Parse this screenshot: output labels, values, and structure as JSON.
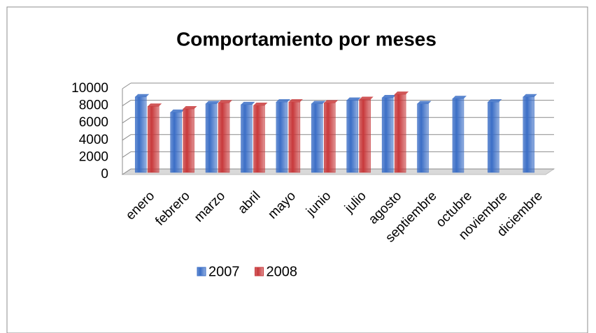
{
  "chart_data": {
    "type": "bar",
    "title": "Comportamiento por meses",
    "categories": [
      "enero",
      "febrero",
      "marzo",
      "abril",
      "mayo",
      "junio",
      "julio",
      "agosto",
      "septiembre",
      "octubre",
      "noviembre",
      "diciembre"
    ],
    "series": [
      {
        "name": "2007",
        "color": "#3b6ec6",
        "values": [
          8800,
          7000,
          8000,
          7900,
          8200,
          8000,
          8400,
          8700,
          8000,
          8600,
          8200,
          8800
        ]
      },
      {
        "name": "2008",
        "color": "#c8393b",
        "values": [
          7700,
          7400,
          8100,
          7800,
          8200,
          8100,
          8500,
          9100,
          null,
          null,
          null,
          null
        ]
      }
    ],
    "ylim": [
      0,
      10000
    ],
    "yticks": [
      0,
      2000,
      4000,
      6000,
      8000,
      10000
    ],
    "grid": true,
    "legend": "bottom"
  }
}
